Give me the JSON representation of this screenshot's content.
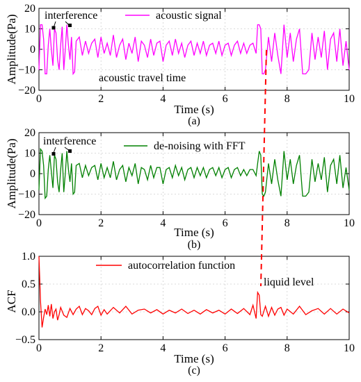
{
  "chart_data": [
    {
      "panel": "(a)",
      "type": "line",
      "xlabel": "Time (s)",
      "ylabel": "Amplitude(Pa)",
      "xlim": [
        0,
        10
      ],
      "ylim": [
        -20,
        20
      ],
      "xticks": [
        "0",
        "2",
        "4",
        "6",
        "8",
        "10"
      ],
      "yticks": [
        "20",
        "10",
        "0",
        "−10",
        "−20"
      ],
      "grid": true,
      "series": [
        {
          "name": "acoustic signal",
          "color": "#ff00ff",
          "x": [
            0,
            0.05,
            0.1,
            0.15,
            0.2,
            0.25,
            0.3,
            0.35,
            0.4,
            0.45,
            0.5,
            0.55,
            0.6,
            0.65,
            0.7,
            0.75,
            0.8,
            0.85,
            0.9,
            0.95,
            1.0,
            1.05,
            1.1,
            1.15,
            1.2,
            1.3,
            1.4,
            1.5,
            1.6,
            1.7,
            1.8,
            1.9,
            2.0,
            2.1,
            2.2,
            2.3,
            2.4,
            2.5,
            2.6,
            2.7,
            2.8,
            2.9,
            3.0,
            3.1,
            3.2,
            3.3,
            3.4,
            3.5,
            3.6,
            3.7,
            3.8,
            3.9,
            4.0,
            4.1,
            4.2,
            4.3,
            4.4,
            4.5,
            4.6,
            4.7,
            4.8,
            4.9,
            5.0,
            5.1,
            5.2,
            5.3,
            5.4,
            5.5,
            5.6,
            5.7,
            5.8,
            5.9,
            6.0,
            6.1,
            6.2,
            6.3,
            6.4,
            6.5,
            6.6,
            6.7,
            6.8,
            6.9,
            7.0,
            7.05,
            7.1,
            7.15,
            7.2,
            7.25,
            7.3,
            7.4,
            7.5,
            7.6,
            7.7,
            7.8,
            7.9,
            8.0,
            8.1,
            8.2,
            8.3,
            8.4,
            8.5,
            8.6,
            8.7,
            8.8,
            8.9,
            9.0,
            9.1,
            9.2,
            9.3,
            9.4,
            9.5,
            9.6,
            9.7,
            9.8,
            9.9,
            10.0
          ],
          "y": [
            -10,
            12,
            12,
            5,
            -12,
            -12,
            2,
            10,
            0,
            -8,
            10,
            8,
            -5,
            -10,
            2,
            11,
            -10,
            0,
            12,
            2,
            -5,
            6,
            -12,
            -11,
            4,
            6,
            -3,
            4,
            -2,
            3,
            5,
            -4,
            6,
            -2,
            3,
            -3,
            7,
            -4,
            2,
            5,
            -5,
            3,
            -2,
            6,
            -6,
            4,
            2,
            -4,
            5,
            -3,
            3,
            4,
            -6,
            2,
            4,
            -3,
            5,
            -2,
            3,
            -4,
            2,
            4,
            -3,
            3,
            -2,
            4,
            -3,
            2,
            3,
            -2,
            4,
            -3,
            2,
            3,
            -3,
            2,
            4,
            -2,
            3,
            -2,
            2,
            3,
            -2,
            12,
            12,
            10,
            -12,
            -12,
            -10,
            6,
            -6,
            8,
            -3,
            -12,
            12,
            -4,
            8,
            -6,
            5,
            10,
            -12,
            -12,
            -10,
            8,
            -5,
            6,
            -4,
            9,
            -10,
            5,
            8,
            -6,
            10,
            -8,
            4,
            -10
          ]
        }
      ],
      "annotations": [
        "interference",
        "acoustic travel time"
      ]
    },
    {
      "panel": "(b)",
      "type": "line",
      "xlabel": "Time (s)",
      "ylabel": "Amplitude(Pa)",
      "xlim": [
        0,
        10
      ],
      "ylim": [
        -20,
        20
      ],
      "xticks": [
        "0",
        "2",
        "4",
        "6",
        "8",
        "10"
      ],
      "yticks": [
        "20",
        "10",
        "0",
        "−10",
        "−20"
      ],
      "grid": true,
      "series": [
        {
          "name": "de-noising with FFT",
          "color": "#008000",
          "x": [
            0,
            0.05,
            0.1,
            0.15,
            0.2,
            0.25,
            0.3,
            0.35,
            0.4,
            0.45,
            0.5,
            0.55,
            0.6,
            0.65,
            0.7,
            0.75,
            0.8,
            0.85,
            0.9,
            0.95,
            1.0,
            1.05,
            1.1,
            1.15,
            1.2,
            1.3,
            1.4,
            1.5,
            1.6,
            1.7,
            1.8,
            1.9,
            2.0,
            2.1,
            2.2,
            2.3,
            2.4,
            2.5,
            2.6,
            2.7,
            2.8,
            2.9,
            3.0,
            3.1,
            3.2,
            3.3,
            3.4,
            3.5,
            3.6,
            3.7,
            3.8,
            3.9,
            4.0,
            4.1,
            4.2,
            4.3,
            4.4,
            4.5,
            4.6,
            4.7,
            4.8,
            4.9,
            5.0,
            5.1,
            5.2,
            5.3,
            5.4,
            5.5,
            5.6,
            5.7,
            5.8,
            5.9,
            6.0,
            6.1,
            6.2,
            6.3,
            6.4,
            6.5,
            6.6,
            6.7,
            6.8,
            6.9,
            7.0,
            7.05,
            7.1,
            7.15,
            7.2,
            7.25,
            7.3,
            7.4,
            7.5,
            7.6,
            7.7,
            7.8,
            7.9,
            8.0,
            8.1,
            8.2,
            8.3,
            8.4,
            8.5,
            8.6,
            8.7,
            8.8,
            8.9,
            9.0,
            9.1,
            9.2,
            9.3,
            9.4,
            9.5,
            9.6,
            9.7,
            9.8,
            9.9,
            10.0
          ],
          "y": [
            -8,
            12,
            11,
            4,
            -12,
            -11,
            2,
            9,
            1,
            -7,
            9,
            7,
            -4,
            -9,
            2,
            10,
            -9,
            0,
            11,
            2,
            -4,
            5,
            -10,
            -9,
            4,
            5,
            -2,
            4,
            -1,
            3,
            4,
            -3,
            5,
            -2,
            3,
            -2,
            6,
            -3,
            2,
            4,
            -4,
            3,
            -1,
            5,
            -5,
            3,
            2,
            -3,
            4,
            -2,
            3,
            3,
            -5,
            2,
            3,
            -2,
            4,
            -1,
            3,
            -3,
            2,
            3,
            -2,
            3,
            -1,
            3,
            -2,
            2,
            3,
            -1,
            3,
            -2,
            2,
            3,
            -2,
            2,
            3,
            -1,
            2,
            -1,
            2,
            2,
            -1,
            5,
            11,
            9,
            -10,
            -11,
            -9,
            5,
            -5,
            7,
            -3,
            -11,
            11,
            -3,
            7,
            -5,
            4,
            9,
            -11,
            -11,
            -9,
            7,
            -4,
            5,
            -3,
            8,
            -9,
            4,
            7,
            -5,
            9,
            -7,
            3,
            -8
          ]
        }
      ],
      "annotations": [
        "interference"
      ]
    },
    {
      "panel": "(c)",
      "type": "line",
      "xlabel": "Time (s)",
      "ylabel": "ACF",
      "xlim": [
        0,
        10
      ],
      "ylim": [
        -0.5,
        1.0
      ],
      "xticks": [
        "0",
        "2",
        "4",
        "6",
        "8",
        "10"
      ],
      "yticks": [
        "1.0",
        "0.5",
        "0.0",
        "−0.5"
      ],
      "grid": true,
      "series": [
        {
          "name": "autocorrelation function",
          "color": "#ff0000",
          "x": [
            0,
            0.05,
            0.1,
            0.15,
            0.2,
            0.25,
            0.3,
            0.35,
            0.4,
            0.45,
            0.5,
            0.55,
            0.6,
            0.65,
            0.7,
            0.8,
            0.9,
            1.0,
            1.1,
            1.2,
            1.3,
            1.4,
            1.5,
            1.6,
            1.7,
            1.8,
            1.9,
            2.0,
            2.1,
            2.2,
            2.4,
            2.6,
            2.8,
            3.0,
            3.2,
            3.4,
            3.6,
            3.8,
            4.0,
            4.2,
            4.4,
            4.6,
            4.8,
            5.0,
            5.2,
            5.4,
            5.6,
            5.8,
            6.0,
            6.2,
            6.4,
            6.6,
            6.8,
            6.9,
            7.0,
            7.05,
            7.1,
            7.15,
            7.2,
            7.3,
            7.4,
            7.5,
            7.6,
            7.7,
            7.8,
            7.9,
            8.0,
            8.2,
            8.4,
            8.6,
            8.8,
            9.0,
            9.2,
            9.4,
            9.6,
            9.8,
            10.0
          ],
          "y": [
            1.0,
            0.2,
            -0.28,
            -0.1,
            0.05,
            -0.05,
            0.12,
            -0.08,
            0.14,
            -0.12,
            0.0,
            0.05,
            -0.15,
            -0.05,
            0.08,
            -0.06,
            -0.1,
            0.06,
            -0.05,
            0.05,
            0.1,
            -0.05,
            0.06,
            0.02,
            -0.05,
            0.06,
            0.1,
            -0.06,
            0.04,
            -0.04,
            0.08,
            -0.02,
            0.1,
            -0.04,
            0.03,
            0.05,
            -0.02,
            0.04,
            -0.04,
            0.03,
            -0.02,
            0.05,
            -0.03,
            0.03,
            -0.04,
            0.04,
            -0.02,
            0.03,
            -0.04,
            0.05,
            -0.03,
            0.06,
            -0.05,
            0.12,
            -0.12,
            0.35,
            0.3,
            -0.05,
            -0.08,
            0.1,
            -0.08,
            0.08,
            -0.06,
            0.05,
            0.08,
            -0.06,
            0.05,
            -0.04,
            0.1,
            -0.05,
            0.02,
            0.06,
            -0.04,
            0.06,
            -0.04,
            0.05,
            -0.02
          ]
        }
      ],
      "annotations": [
        "liquid level"
      ]
    }
  ],
  "figure": {
    "captions": [
      "(a)",
      "(b)",
      "(c)"
    ],
    "marker_line_color": "#ff0000"
  }
}
